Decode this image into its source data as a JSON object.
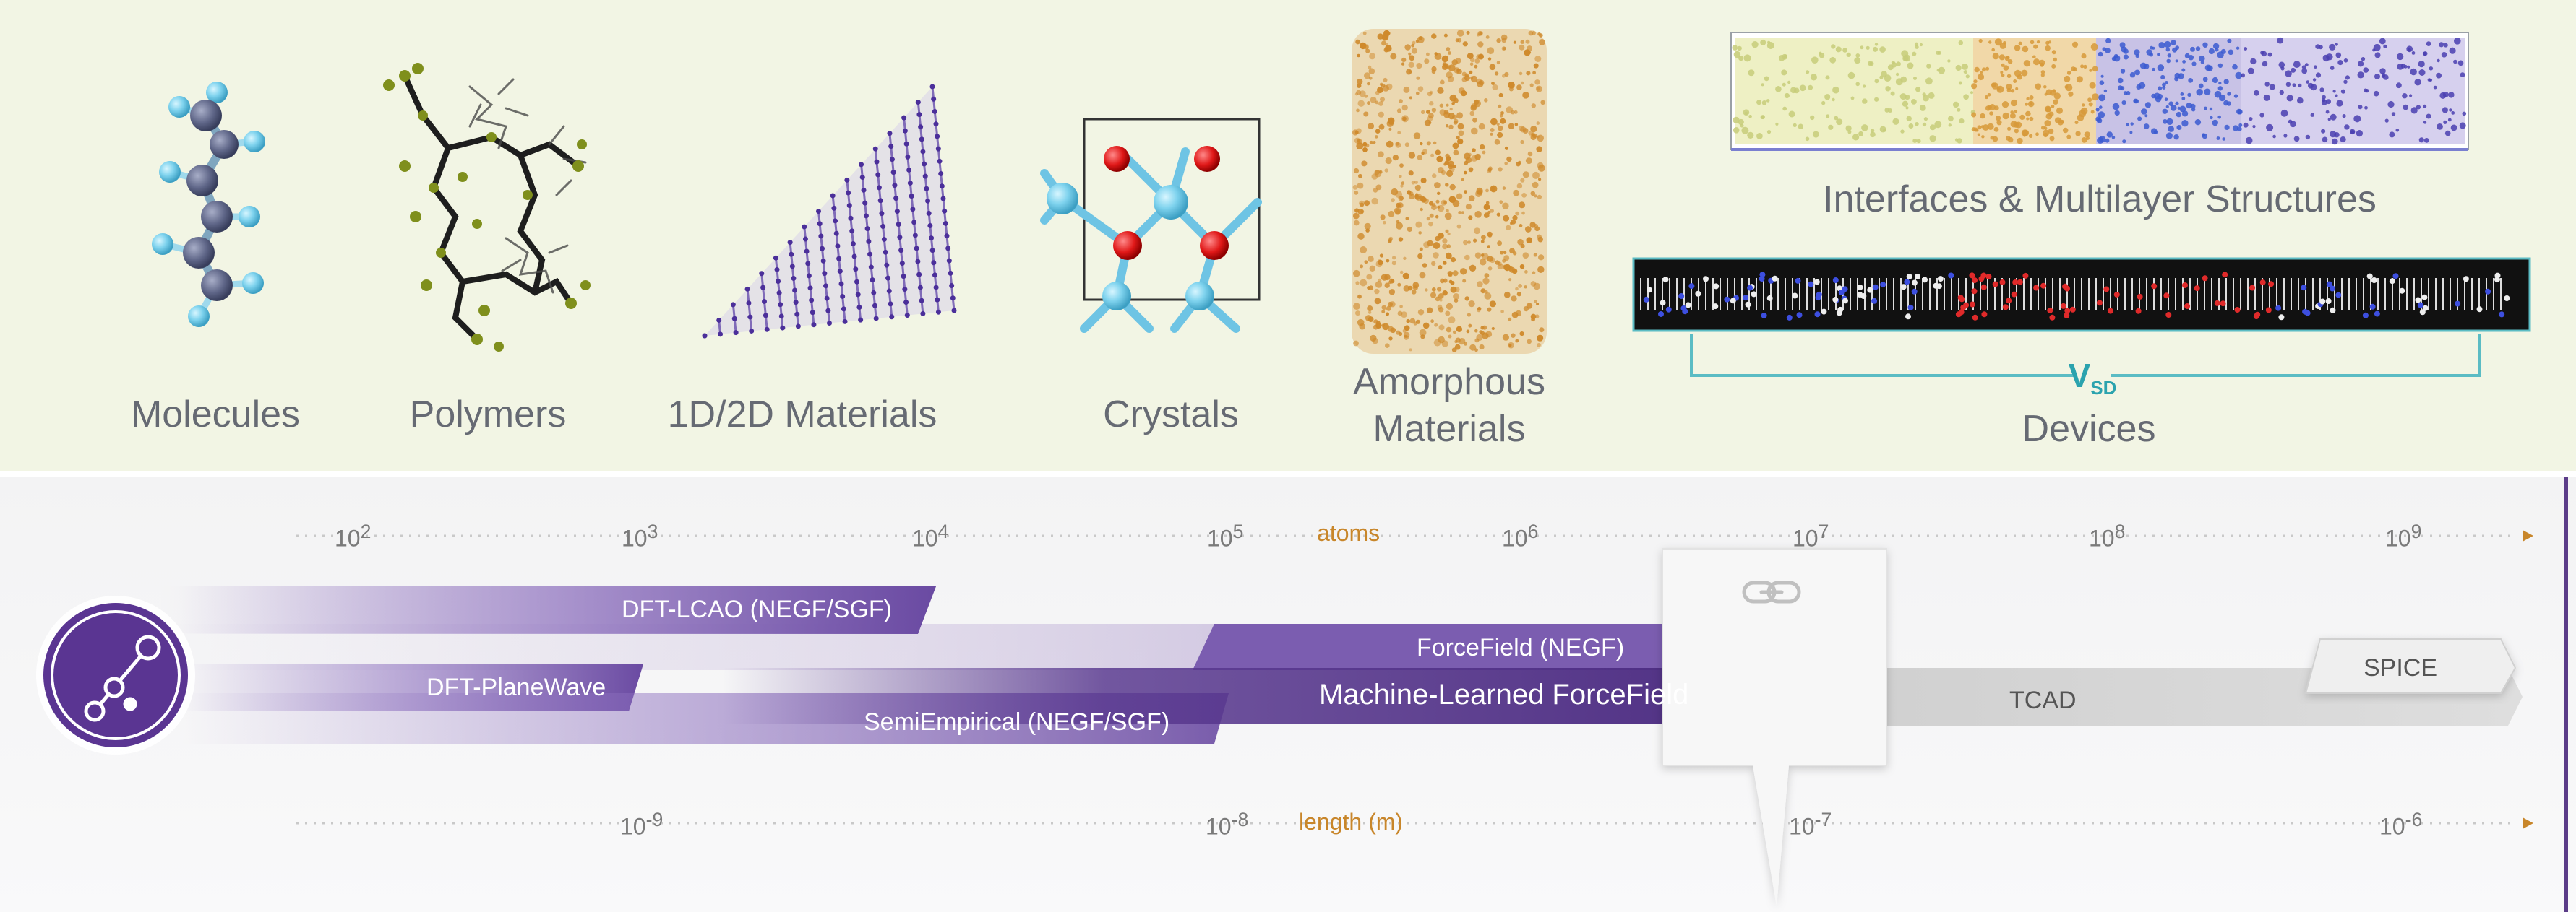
{
  "top_panel": {
    "categories": {
      "molecules": "Molecules",
      "polymers": "Polymers",
      "materials_1d2d": "1D/2D Materials",
      "crystals": "Crystals",
      "amorphous_line1": "Amorphous",
      "amorphous_line2": "Materials",
      "interfaces": "Interfaces & Multilayer Structures",
      "devices": "Devices"
    },
    "device_voltage": {
      "main": "V",
      "sub": "SD"
    }
  },
  "scales": {
    "atoms": {
      "unit_label": "atoms",
      "ticks": [
        {
          "base": "10",
          "exp": "2"
        },
        {
          "base": "10",
          "exp": "3"
        },
        {
          "base": "10",
          "exp": "4"
        },
        {
          "base": "10",
          "exp": "5"
        },
        {
          "base": "10",
          "exp": "6"
        },
        {
          "base": "10",
          "exp": "7"
        },
        {
          "base": "10",
          "exp": "8"
        },
        {
          "base": "10",
          "exp": "9"
        }
      ]
    },
    "length": {
      "unit_label": "length (m)",
      "ticks": [
        {
          "base": "10",
          "exp": "-9"
        },
        {
          "base": "10",
          "exp": "-8"
        },
        {
          "base": "10",
          "exp": "-7"
        },
        {
          "base": "10",
          "exp": "-6"
        }
      ]
    }
  },
  "methods": {
    "dft_lcao": "DFT-LCAO (NEGF/SGF)",
    "dft_planewave": "DFT-PlaneWave",
    "forcefield": "ForceField (NEGF)",
    "semiempirical": "SemiEmpirical (NEGF/SGF)",
    "ml_forcefield": "Machine-Learned ForceField",
    "tcad": "TCAD",
    "spice": "SPICE"
  },
  "icons": {
    "workflow": "workflow-nodes-icon",
    "link": "link-icon"
  },
  "colors": {
    "panel_bg": "#f2f5e4",
    "purple_dark": "#4c2c80",
    "purple_mid": "#7656a8",
    "purple_light": "#9a7fc4",
    "unit_orange": "#c8862a",
    "label_gray": "#666a73",
    "tcad_gray": "#d4d4d4"
  }
}
